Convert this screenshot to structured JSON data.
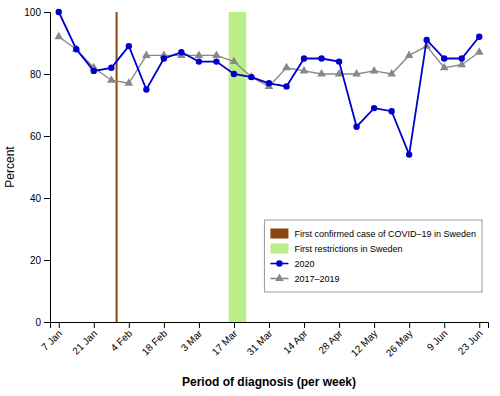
{
  "chart_data": {
    "type": "line",
    "x": [
      0,
      1,
      2,
      3,
      4,
      5,
      6,
      7,
      8,
      9,
      10,
      11,
      12,
      13,
      14,
      15,
      16,
      17,
      18,
      19,
      20,
      21,
      22,
      23,
      24
    ],
    "xlim": [
      -0.5,
      24.5
    ],
    "xticks": [
      {
        "value": 0,
        "label": "7 Jan"
      },
      {
        "value": 2,
        "label": "21 Jan"
      },
      {
        "value": 4,
        "label": "4 Feb"
      },
      {
        "value": 6,
        "label": "18 Feb"
      },
      {
        "value": 8,
        "label": "3 Mar"
      },
      {
        "value": 10,
        "label": "17 Mar"
      },
      {
        "value": 12,
        "label": "31 Mar"
      },
      {
        "value": 14,
        "label": "14 Apr"
      },
      {
        "value": 16,
        "label": "28 Apr"
      },
      {
        "value": 18,
        "label": "12 May"
      },
      {
        "value": 20,
        "label": "26 May"
      },
      {
        "value": 22,
        "label": "9 Jun"
      },
      {
        "value": 24,
        "label": "23 Jun"
      }
    ],
    "ylim": [
      0,
      100
    ],
    "yticks": [
      0,
      20,
      40,
      60,
      80,
      100
    ],
    "xlabel": "Period of diagnosis (per week)",
    "ylabel": "Percent",
    "series": [
      {
        "name": "2020",
        "color": "#0000CC",
        "marker": "circle",
        "values": [
          100,
          88,
          81,
          82,
          89,
          75,
          85,
          87,
          84,
          84,
          80,
          79,
          77,
          76,
          85,
          85,
          84,
          63,
          69,
          68,
          54,
          91,
          85,
          85,
          92
        ]
      },
      {
        "name": "2017–2019",
        "color": "#888888",
        "marker": "triangle",
        "values": [
          92,
          88,
          82,
          78,
          77,
          86,
          86,
          86,
          86,
          86,
          84,
          79,
          76,
          82,
          81,
          80,
          80,
          80,
          81,
          80,
          86,
          89,
          82,
          83,
          87
        ]
      }
    ],
    "annotations": [
      {
        "type": "vline",
        "x": 3.3,
        "label": "First confirmed case of COVID–19 in Sweden",
        "color": "#8B4513"
      },
      {
        "type": "band",
        "x": [
          9.7,
          10.7
        ],
        "label": "First restrictions in Sweden",
        "color": "#BBEE88"
      }
    ],
    "legend": "lower right",
    "grid": false
  }
}
